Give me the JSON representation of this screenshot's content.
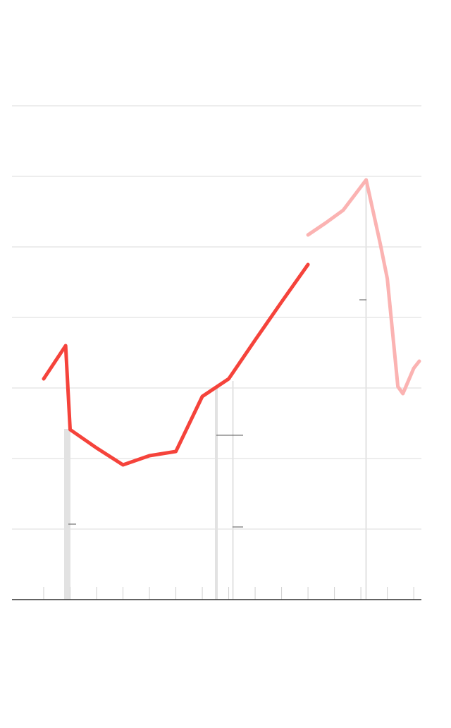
{
  "chart_data": {
    "type": "line",
    "xlim": [
      -1.2,
      14.29
    ],
    "xticks": [
      0,
      1,
      2,
      3,
      4,
      5,
      6,
      7,
      8,
      9,
      10,
      11,
      12,
      13,
      14
    ],
    "ylim": [
      0,
      7
    ],
    "yticks": [
      0,
      1,
      2,
      3,
      4,
      5,
      6,
      7
    ],
    "grid": true,
    "series": [
      {
        "color": "#f5433b",
        "x": [
          0,
          0.83,
          1,
          2,
          3,
          4,
          5,
          6,
          7,
          8,
          9,
          10
        ],
        "values": [
          3.13,
          3.6,
          2.41,
          2.15,
          1.91,
          2.04,
          2.1,
          2.88,
          3.13,
          3.68,
          4.22,
          4.75
        ]
      },
      {
        "color": "#fbb3b2",
        "x": [
          10,
          10.67,
          11.33,
          12.2,
          12.73,
          13,
          13.4,
          13.59,
          14,
          14.21
        ],
        "values": [
          5.17,
          5.34,
          5.52,
          5.95,
          5.05,
          4.55,
          3.02,
          2.92,
          3.28,
          3.38
        ]
      }
    ]
  }
}
